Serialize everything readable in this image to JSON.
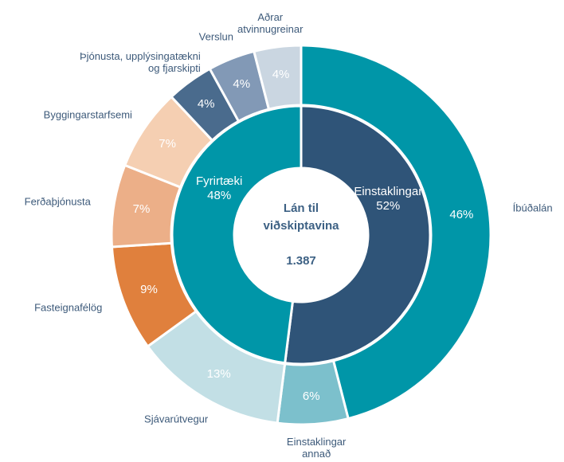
{
  "chart_data": {
    "type": "nested-donut",
    "center_title": "Lán til\nviðskiptavina",
    "center_total": "1.387",
    "inner": {
      "categories": [
        "Einstaklingar",
        "Fyrirtæki"
      ],
      "values": [
        52,
        48
      ],
      "value_labels": [
        "52%",
        "48%"
      ],
      "colors": [
        "#2f5478",
        "#0096a8"
      ]
    },
    "outer": {
      "categories": [
        "Íbúðalán",
        "Einstaklingar\nannað",
        "Sjávarútvegur",
        "Fasteignafélög",
        "Ferðaþjónusta",
        "Byggingarstarfsemi",
        "Þjónusta, upplýsingatækni\nog fjarskipti",
        "Verslun",
        "Aðrar\natvinnugreinar"
      ],
      "values": [
        46,
        6,
        13,
        9,
        7,
        7,
        4,
        4,
        4
      ],
      "value_labels": [
        "46%",
        "6%",
        "13%",
        "9%",
        "7%",
        "7%",
        "4%",
        "4%",
        "4%"
      ],
      "colors": [
        "#0096a8",
        "#7cc0cc",
        "#c2dfe5",
        "#e0803d",
        "#ecaf88",
        "#f5cfb2",
        "#4a6b8d",
        "#8299b6",
        "#cad6e1"
      ]
    }
  }
}
